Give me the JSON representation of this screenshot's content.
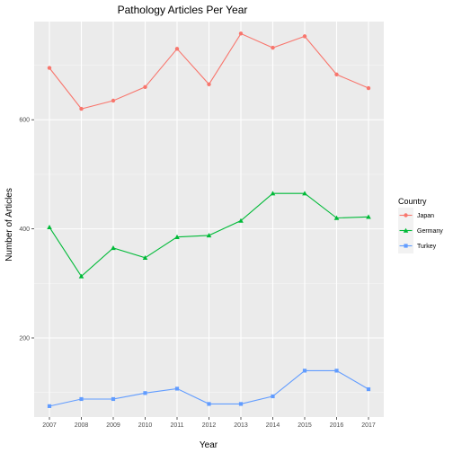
{
  "chart_data": {
    "type": "line",
    "title": "Pathology Articles Per Year",
    "xlabel": "Year",
    "ylabel": "Number of Articles",
    "x": [
      2007,
      2008,
      2009,
      2010,
      2011,
      2012,
      2013,
      2014,
      2015,
      2016,
      2017
    ],
    "ylim": [
      55,
      780
    ],
    "yticks": [
      200,
      400,
      600
    ],
    "grid": true,
    "legend": {
      "title": "Country",
      "position": "right"
    },
    "series": [
      {
        "name": "Japan",
        "color": "#F8766D",
        "marker": "circle",
        "values": [
          695,
          620,
          635,
          660,
          730,
          665,
          758,
          732,
          753,
          683,
          658
        ]
      },
      {
        "name": "Germany",
        "color": "#00BA38",
        "marker": "triangle",
        "values": [
          403,
          313,
          365,
          347,
          385,
          388,
          415,
          465,
          465,
          420,
          422
        ]
      },
      {
        "name": "Turkey",
        "color": "#619CFF",
        "marker": "square",
        "values": [
          75,
          88,
          88,
          99,
          107,
          79,
          79,
          93,
          140,
          140,
          106
        ]
      }
    ]
  }
}
